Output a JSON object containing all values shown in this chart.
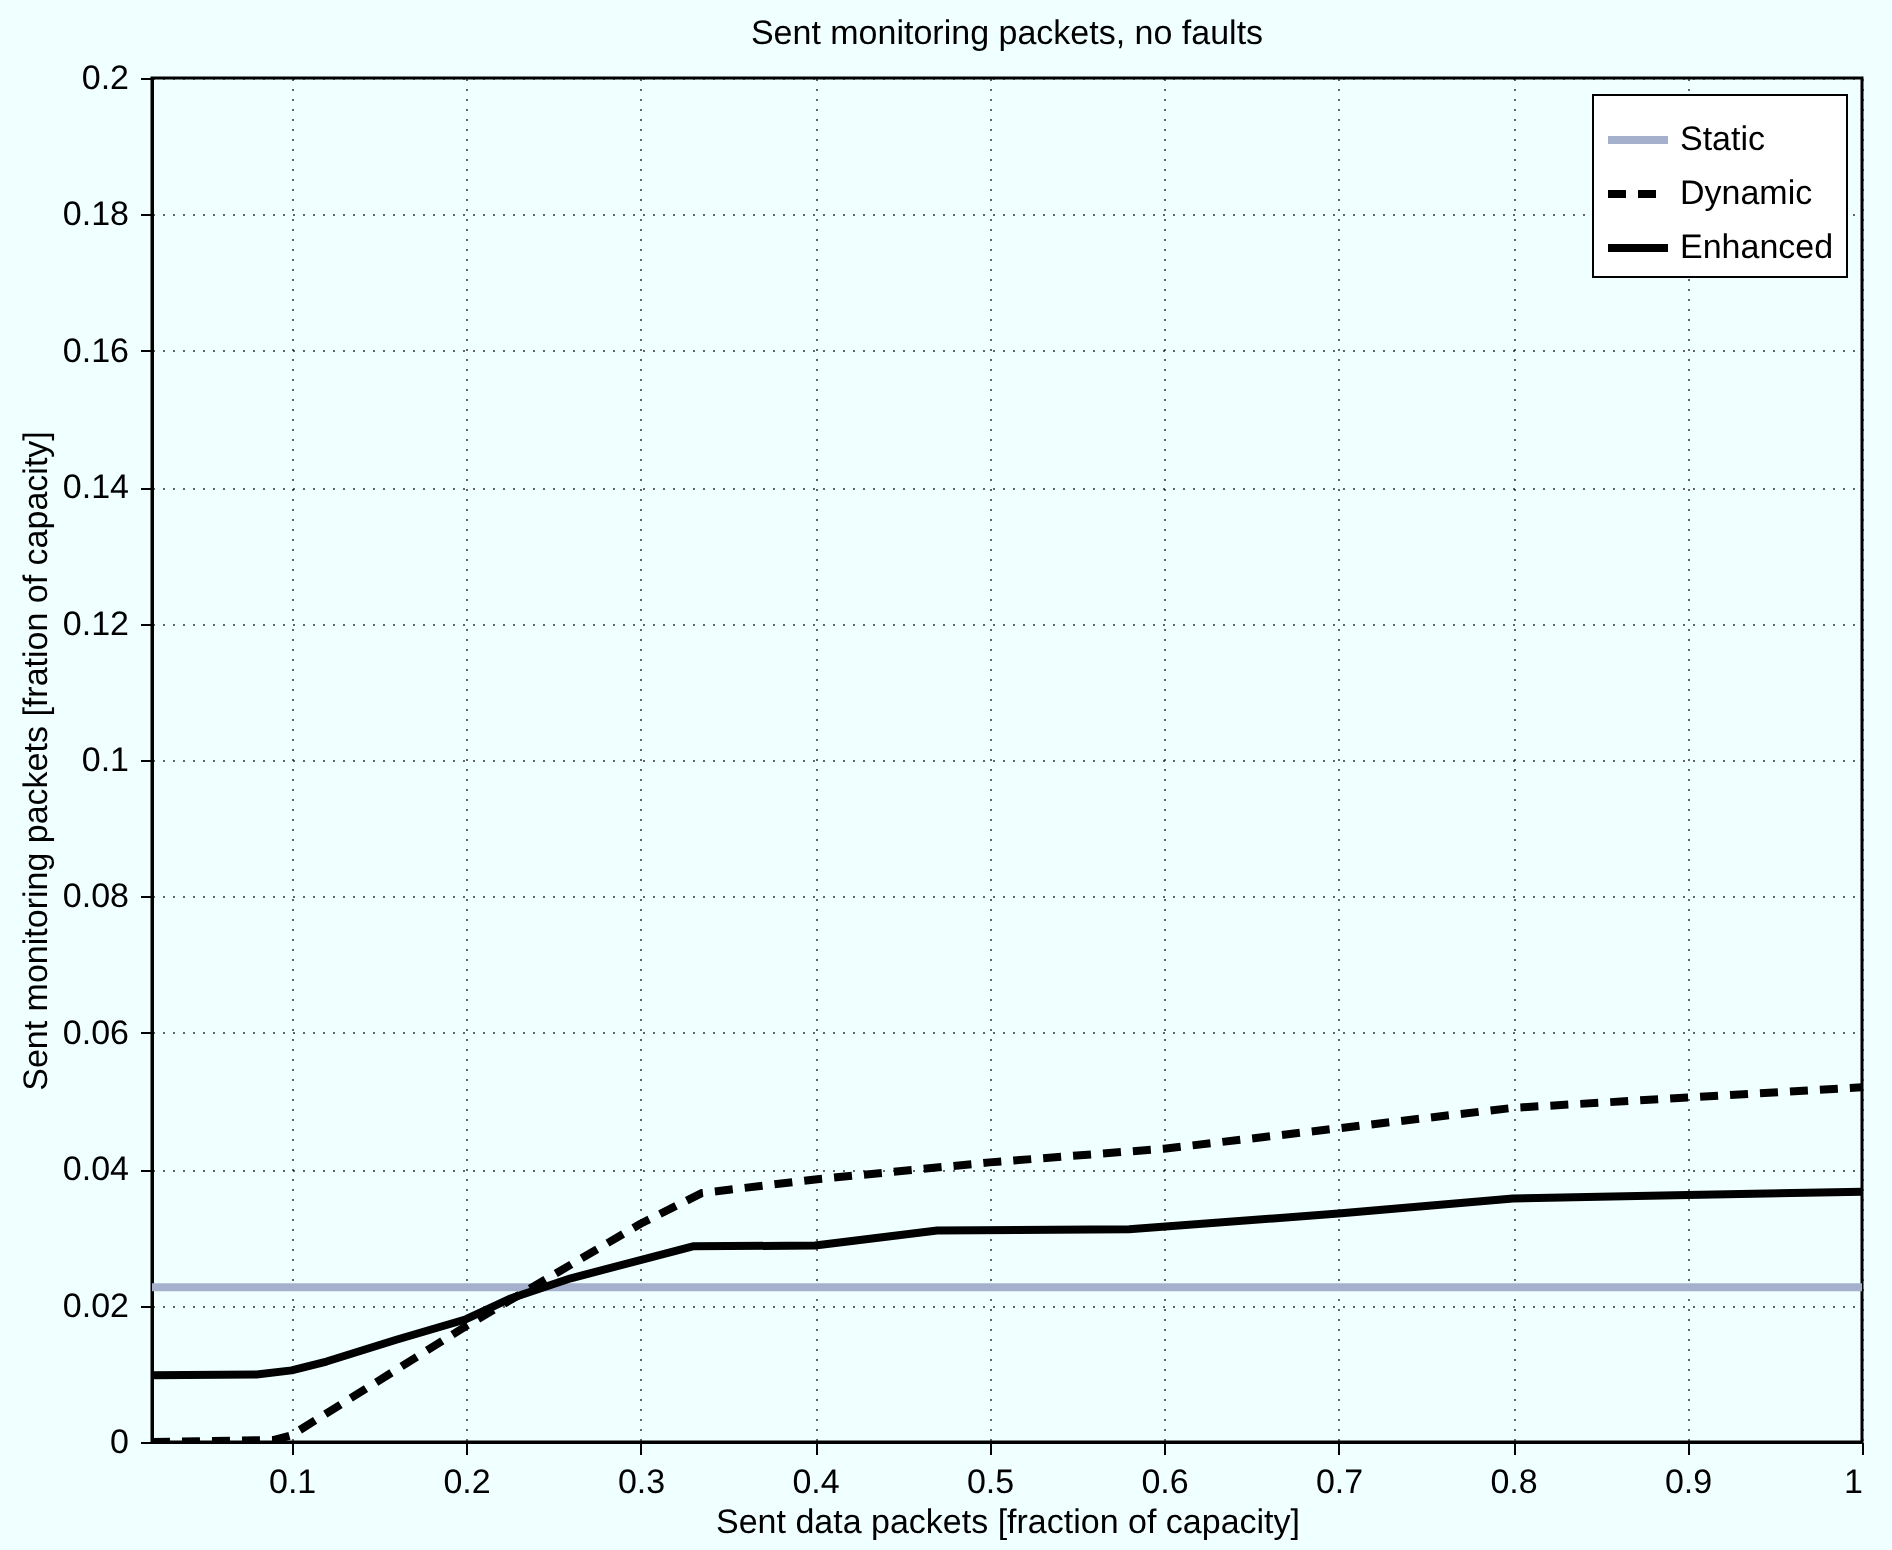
{
  "chart_data": {
    "type": "line",
    "title": "Sent monitoring packets, no faults",
    "xlabel": "Sent data packets [fraction of capacity]",
    "ylabel": "Sent monitoring packets [fration of capacity]",
    "series": [
      {
        "name": "Static",
        "color": "#a4b0cc",
        "line_style": "solid",
        "x": [
          0.02,
          1.0
        ],
        "values": [
          0.0227,
          0.0227
        ]
      },
      {
        "name": "Dynamic",
        "color": "#000000",
        "line_style": "dashed",
        "x": [
          0.02,
          0.09,
          0.1,
          0.2,
          0.3,
          0.335,
          0.4,
          0.5,
          0.6,
          0.7,
          0.8,
          0.9,
          1.0
        ],
        "values": [
          0.0,
          0.0003,
          0.001,
          0.017,
          0.032,
          0.0365,
          0.0385,
          0.041,
          0.043,
          0.046,
          0.049,
          0.0505,
          0.052
        ]
      },
      {
        "name": "Enhanced",
        "color": "#000000",
        "line_style": "solid",
        "x": [
          0.02,
          0.08,
          0.1,
          0.12,
          0.16,
          0.2,
          0.225,
          0.26,
          0.33,
          0.4,
          0.47,
          0.58,
          0.7,
          0.8,
          0.9,
          1.0
        ],
        "values": [
          0.0098,
          0.0099,
          0.0105,
          0.0118,
          0.015,
          0.018,
          0.021,
          0.024,
          0.0287,
          0.0288,
          0.031,
          0.0312,
          0.0335,
          0.0357,
          0.0362,
          0.0367
        ]
      }
    ],
    "xlim": [
      0.02,
      1
    ],
    "xticks": [
      0.1,
      0.2,
      0.3,
      0.4,
      0.5,
      0.6,
      0.7,
      0.8,
      0.9,
      1
    ],
    "ylim": [
      0,
      0.2
    ],
    "yticks": [
      0,
      0.02,
      0.04,
      0.06,
      0.08,
      0.1,
      0.12,
      0.14,
      0.16,
      0.18,
      0.2
    ],
    "grid": true,
    "legend": "top right",
    "marker": "none"
  }
}
